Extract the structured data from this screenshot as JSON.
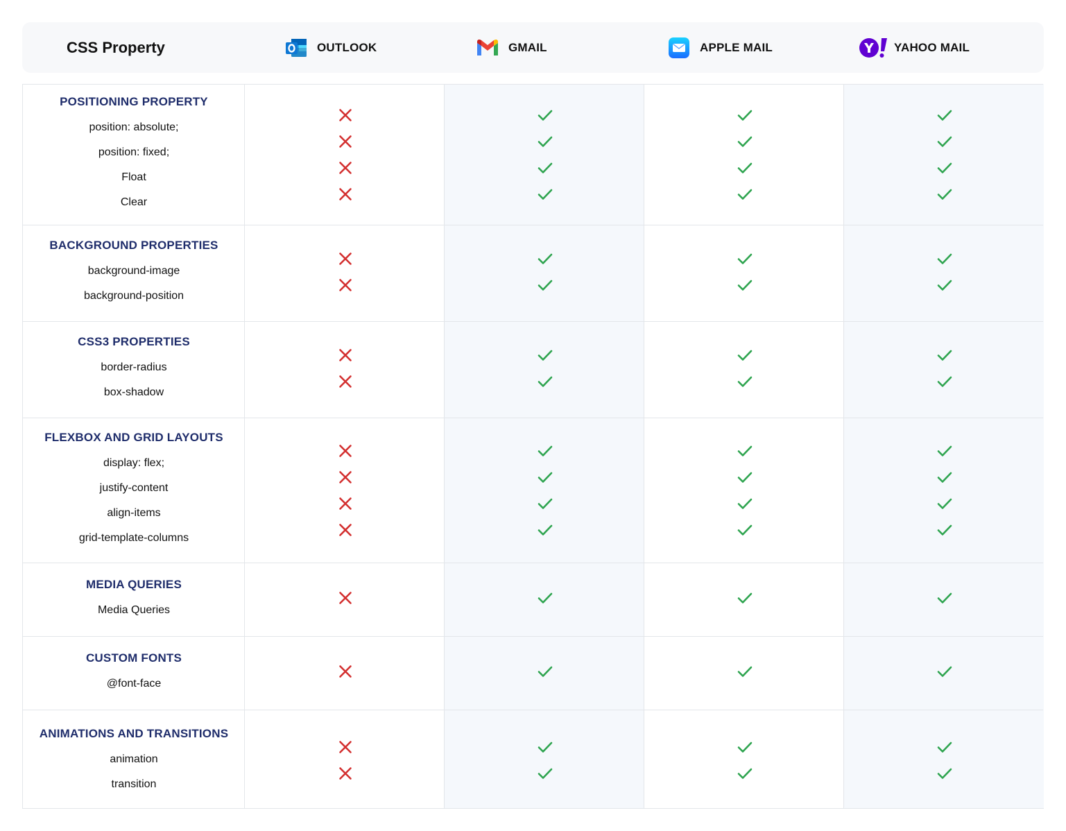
{
  "header": {
    "first_column": "CSS Property",
    "clients": [
      {
        "name": "OUTLOOK",
        "icon": "outlook-logo-icon"
      },
      {
        "name": "GMAIL",
        "icon": "gmail-logo-icon"
      },
      {
        "name": "APPLE MAIL",
        "icon": "apple-mail-logo-icon"
      },
      {
        "name": "YAHOO MAIL",
        "icon": "yahoo-mail-logo-icon"
      }
    ]
  },
  "colors": {
    "category_title": "#1f2d6b",
    "cross": "#d32f2f",
    "check": "#2ea44f",
    "header_background": "#f7f8fa",
    "alt_column_background": "#f5f8fc",
    "border": "#e3e6ea"
  },
  "sections": [
    {
      "title": "POSITIONING PROPERTY",
      "properties": [
        "position: absolute;",
        "position: fixed;",
        "Float",
        "Clear"
      ],
      "support": [
        {
          "outlook": false,
          "gmail": true,
          "apple_mail": true,
          "yahoo_mail": true
        },
        {
          "outlook": false,
          "gmail": true,
          "apple_mail": true,
          "yahoo_mail": true
        },
        {
          "outlook": false,
          "gmail": true,
          "apple_mail": true,
          "yahoo_mail": true
        },
        {
          "outlook": false,
          "gmail": true,
          "apple_mail": true,
          "yahoo_mail": true
        }
      ]
    },
    {
      "title": "BACKGROUND PROPERTIES",
      "properties": [
        "background-image",
        "background-position"
      ],
      "support": [
        {
          "outlook": false,
          "gmail": true,
          "apple_mail": true,
          "yahoo_mail": true
        },
        {
          "outlook": false,
          "gmail": true,
          "apple_mail": true,
          "yahoo_mail": true
        }
      ]
    },
    {
      "title": "CSS3 PROPERTIES",
      "properties": [
        "border-radius",
        "box-shadow"
      ],
      "support": [
        {
          "outlook": false,
          "gmail": true,
          "apple_mail": true,
          "yahoo_mail": true
        },
        {
          "outlook": false,
          "gmail": true,
          "apple_mail": true,
          "yahoo_mail": true
        }
      ]
    },
    {
      "title": "FLEXBOX AND GRID LAYOUTS",
      "properties": [
        "display: flex;",
        "justify-content",
        "align-items",
        "grid-template-columns"
      ],
      "support": [
        {
          "outlook": false,
          "gmail": true,
          "apple_mail": true,
          "yahoo_mail": true
        },
        {
          "outlook": false,
          "gmail": true,
          "apple_mail": true,
          "yahoo_mail": true
        },
        {
          "outlook": false,
          "gmail": true,
          "apple_mail": true,
          "yahoo_mail": true
        },
        {
          "outlook": false,
          "gmail": true,
          "apple_mail": true,
          "yahoo_mail": true
        }
      ]
    },
    {
      "title": "MEDIA QUERIES",
      "properties": [
        "Media Queries"
      ],
      "support": [
        {
          "outlook": false,
          "gmail": true,
          "apple_mail": true,
          "yahoo_mail": true
        }
      ]
    },
    {
      "title": "CUSTOM FONTS",
      "properties": [
        "@font-face"
      ],
      "support": [
        {
          "outlook": false,
          "gmail": true,
          "apple_mail": true,
          "yahoo_mail": true
        }
      ]
    },
    {
      "title": "ANIMATIONS AND TRANSITIONS",
      "properties": [
        "animation",
        "transition"
      ],
      "support": [
        {
          "outlook": false,
          "gmail": true,
          "apple_mail": true,
          "yahoo_mail": true
        },
        {
          "outlook": false,
          "gmail": true,
          "apple_mail": true,
          "yahoo_mail": true
        }
      ]
    }
  ]
}
